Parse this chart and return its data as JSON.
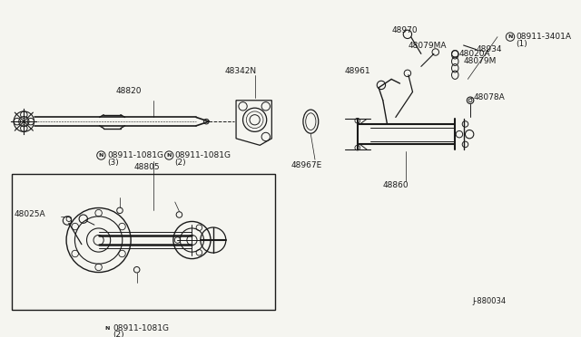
{
  "bg_color": "#f5f5f0",
  "line_color": "#1a1a1a",
  "fig_label": "J-880034",
  "font_size": 6.5,
  "border_lw": 1.0,
  "parts": {
    "shaft_label": "48820",
    "bracket_label": "48342N",
    "oring_label": "48967E",
    "column_label": "48860",
    "bolt1_label": "08911-3401A",
    "bolt1_sub": "(1)",
    "bolt2_label": "48078A",
    "arm_label": "48961",
    "spring_label": "48079M",
    "bracket2_label": "48020A",
    "pin_label": "48079MA",
    "clip_label": "48934",
    "lever_label": "48970",
    "bolt_bot1_label": "08911-1081G",
    "bolt_bot1_sub": "(3)",
    "bolt_bot2_label": "08911-1081G",
    "bolt_bot2_sub": "(2)",
    "col2_label": "48805",
    "bolt_bot3_label": "08911-1081G",
    "bolt_bot3_sub": "(2)",
    "mount_label": "48025A"
  }
}
